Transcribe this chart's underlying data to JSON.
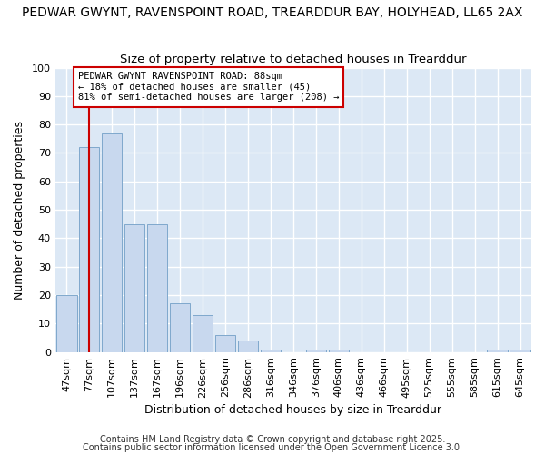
{
  "title_line1": "PEDWAR GWYNT, RAVENSPOINT ROAD, TREARDDUR BAY, HOLYHEAD, LL65 2AX",
  "title_line2": "Size of property relative to detached houses in Trearddur",
  "xlabel": "Distribution of detached houses by size in Trearddur",
  "ylabel": "Number of detached properties",
  "categories": [
    "47sqm",
    "77sqm",
    "107sqm",
    "137sqm",
    "167sqm",
    "196sqm",
    "226sqm",
    "256sqm",
    "286sqm",
    "316sqm",
    "346sqm",
    "376sqm",
    "406sqm",
    "436sqm",
    "466sqm",
    "495sqm",
    "525sqm",
    "555sqm",
    "585sqm",
    "615sqm",
    "645sqm"
  ],
  "values": [
    20,
    72,
    77,
    45,
    45,
    17,
    13,
    6,
    4,
    1,
    0,
    1,
    1,
    0,
    0,
    0,
    0,
    0,
    0,
    1,
    1
  ],
  "bar_color": "#c8d8ee",
  "bar_edge_color": "#7fa8cc",
  "vline_x": 1,
  "vline_color": "#cc0000",
  "annotation_text": "PEDWAR GWYNT RAVENSPOINT ROAD: 88sqm\n← 18% of detached houses are smaller (45)\n81% of semi-detached houses are larger (208) →",
  "annotation_box_color": "#ffffff",
  "annotation_box_edge": "#cc0000",
  "ylim": [
    0,
    100
  ],
  "yticks": [
    0,
    10,
    20,
    30,
    40,
    50,
    60,
    70,
    80,
    90,
    100
  ],
  "fig_bg_color": "#ffffff",
  "plot_bg_color": "#dce8f5",
  "footer_line1": "Contains HM Land Registry data © Crown copyright and database right 2025.",
  "footer_line2": "Contains public sector information licensed under the Open Government Licence 3.0.",
  "grid_color": "#ffffff",
  "title_fontsize": 10,
  "subtitle_fontsize": 9.5,
  "axis_label_fontsize": 9,
  "tick_fontsize": 8,
  "footer_fontsize": 7
}
